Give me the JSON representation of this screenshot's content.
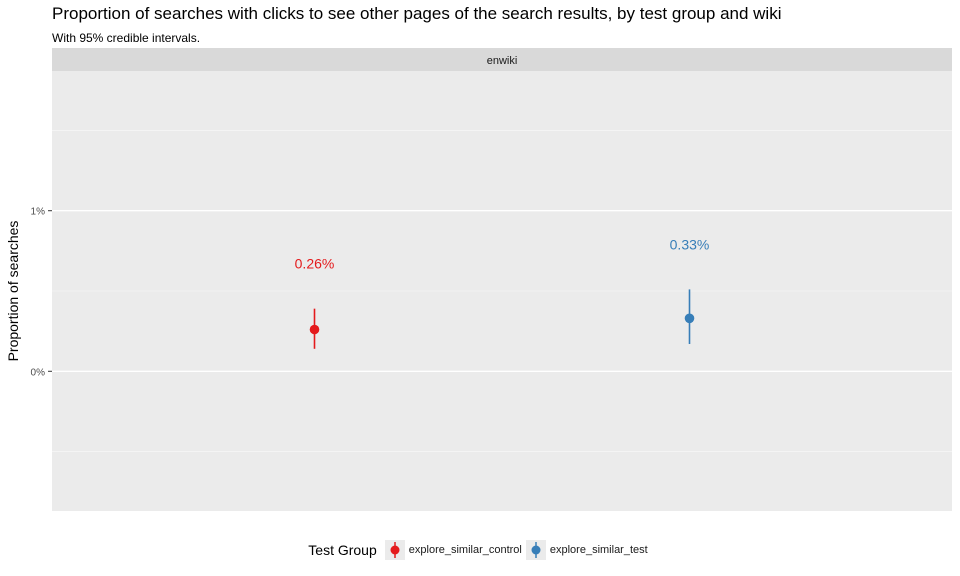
{
  "chart_data": {
    "type": "scatter",
    "title": "Proportion of searches with clicks to see other pages of the search results, by test group and wiki",
    "subtitle": "With 95% credible intervals.",
    "facet": "enwiki",
    "ylabel": "Proportion of searches",
    "xlabel": "",
    "ylim": [
      -0.87,
      1.87
    ],
    "yticks": [
      {
        "value": 0,
        "label": "0%"
      },
      {
        "value": 1,
        "label": "1%"
      }
    ],
    "minor_yticks": [
      -0.5,
      0.5,
      1.5
    ],
    "grid": true,
    "legend_position": "bottom",
    "legend_title": "Test Group",
    "series": [
      {
        "name": "explore_similar_control",
        "value": 0.26,
        "lower": 0.14,
        "upper": 0.39,
        "label": "0.26%",
        "color": "#e41a1c"
      },
      {
        "name": "explore_similar_test",
        "value": 0.33,
        "lower": 0.17,
        "upper": 0.51,
        "label": "0.33%",
        "color": "#377eb8"
      }
    ]
  }
}
